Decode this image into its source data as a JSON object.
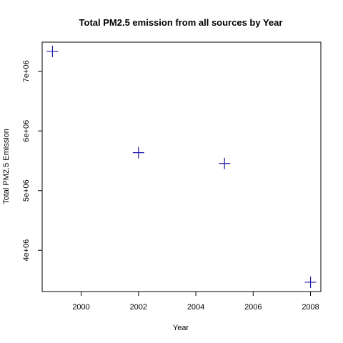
{
  "chart_data": {
    "type": "scatter",
    "title": "Total PM2.5 emission from all sources by Year",
    "xlabel": "Year",
    "ylabel": "Total PM2.5 Emission",
    "x": [
      1999,
      2002,
      2005,
      2008
    ],
    "y": [
      7332967,
      5635780,
      5454703,
      3464206
    ],
    "xlim": [
      1998.64,
      2008.36
    ],
    "ylim": [
      3308000,
      7488000
    ],
    "xticks": [
      2000,
      2002,
      2004,
      2006,
      2008
    ],
    "xtick_labels": [
      "2000",
      "2002",
      "2004",
      "2006",
      "2008"
    ],
    "yticks": [
      4000000,
      5000000,
      6000000,
      7000000
    ],
    "ytick_labels": [
      "4e+06",
      "5e+06",
      "6e+06",
      "7e+06"
    ],
    "marker": "+",
    "marker_color": "#1a1aa6",
    "grid": false
  }
}
